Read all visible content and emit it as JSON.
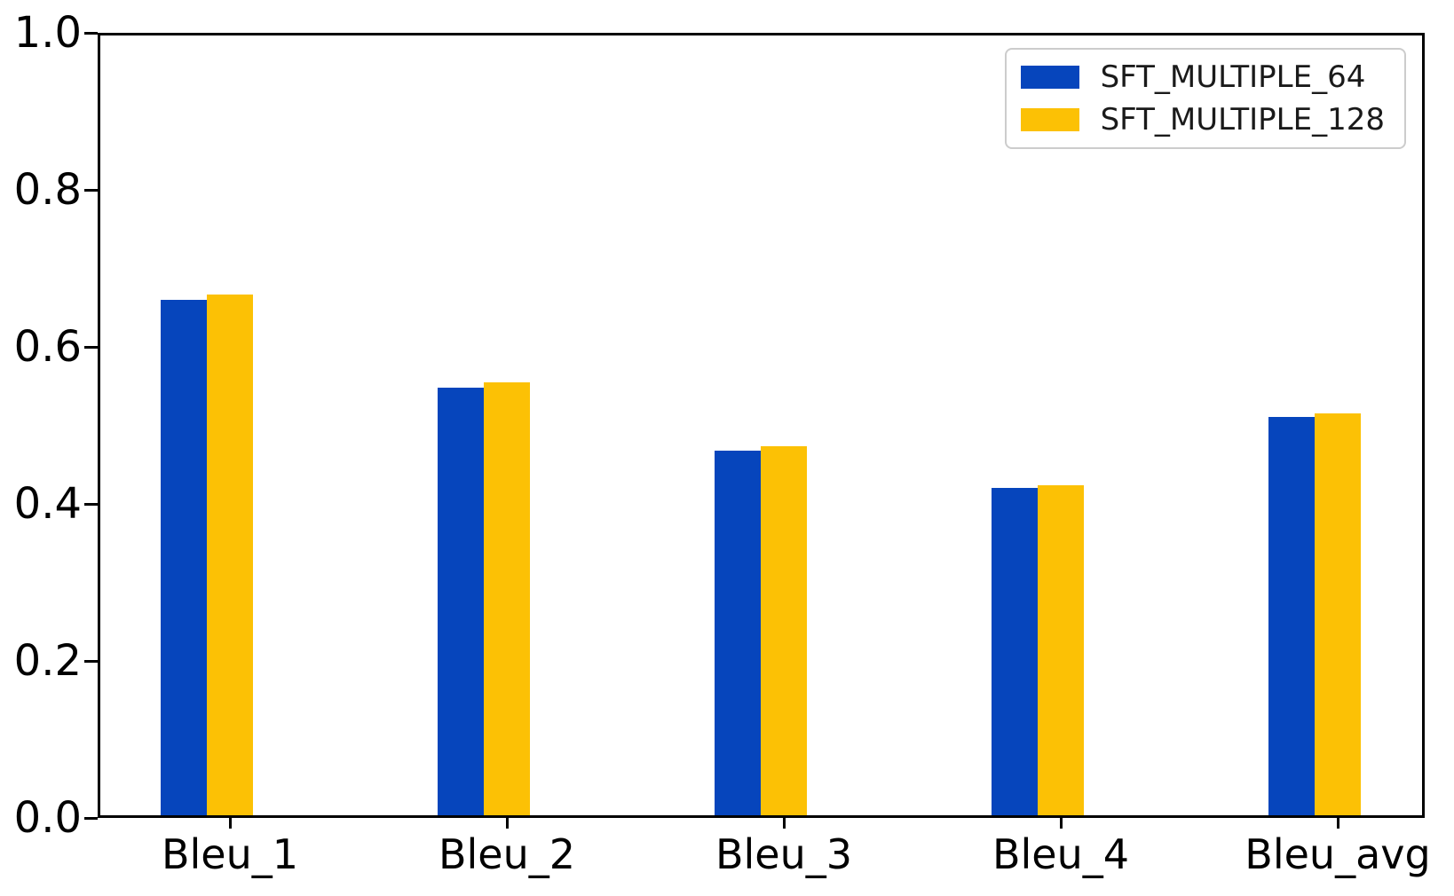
{
  "chart_data": {
    "type": "bar",
    "title": "",
    "xlabel": "",
    "ylabel": "",
    "categories": [
      "Bleu_1",
      "Bleu_2",
      "Bleu_3",
      "Bleu_4",
      "Bleu_avg"
    ],
    "series": [
      {
        "name": "SFT_MULTIPLE_64",
        "color": "#0645BC",
        "values": [
          0.661,
          0.548,
          0.468,
          0.42,
          0.511
        ]
      },
      {
        "name": "SFT_MULTIPLE_128",
        "color": "#FCC105",
        "values": [
          0.668,
          0.555,
          0.473,
          0.423,
          0.515
        ]
      }
    ],
    "ylim": [
      0.0,
      1.0
    ],
    "yticks": [
      0.0,
      0.2,
      0.4,
      0.6,
      0.8,
      1.0
    ],
    "ytick_labels": [
      "0.0",
      "0.2",
      "0.4",
      "0.6",
      "0.8",
      "1.0"
    ],
    "grid": false,
    "legend_position": "upper right",
    "bar_layout": "grouped-pair, second series centered on category tick"
  },
  "colors": {
    "background": "#ffffff",
    "spine": "#000000",
    "tick_label": "#000000",
    "legend_border": "#cccccc"
  }
}
